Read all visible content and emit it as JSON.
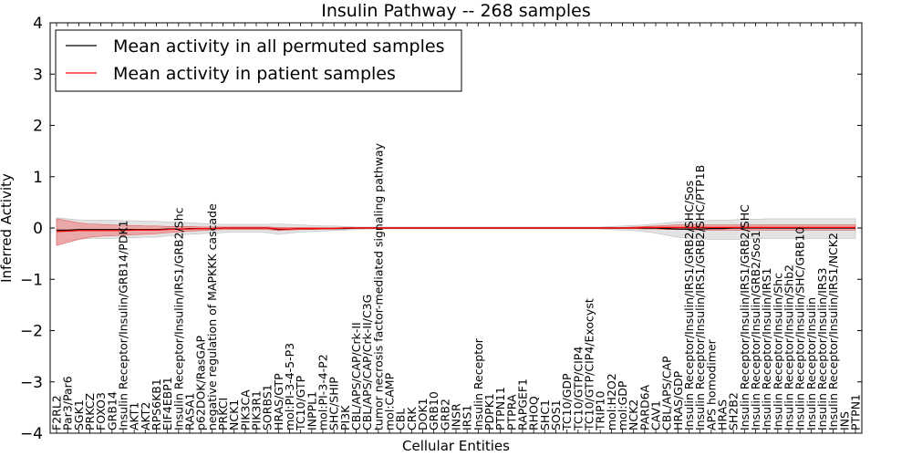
{
  "chart_data": {
    "type": "line",
    "title": "Insulin Pathway -- 268 samples",
    "xlabel": "Cellular Entities",
    "ylabel": "Inferred Activity",
    "ylim": [
      -4,
      4
    ],
    "yticks": [
      -4,
      -3,
      -2,
      -1,
      0,
      1,
      2,
      3,
      4
    ],
    "ytick_labels": [
      "−4",
      "−3",
      "−2",
      "−1",
      "0",
      "1",
      "2",
      "3",
      "4"
    ],
    "legend_position": "top-left",
    "grid": false,
    "categories": [
      "F2RL2",
      "Par3/Par6",
      "SGK1",
      "PRKCZ",
      "FOXO3",
      "GRB14",
      "Insulin Receptor/Insulin/GRB14/PDK1",
      "AKT1",
      "AKT2",
      "RPS6KB1",
      "EIF4EBP1",
      "Insulin Receptor/Insulin/IRS1/GRB2/Shc",
      "RASA1",
      "p62DOK/RasGAP",
      "negative regulation of MAPKKK cascade",
      "PRKCI",
      "NCK1",
      "PIK3CA",
      "PIK3R1",
      "SORBS1",
      "HRAS/GTP",
      "mol:PI-3-4-5-P3",
      "TC10/GTP",
      "INPPL1",
      "mol:PI-3-4-P2",
      "SHC/SHIP",
      "PI3K",
      "CBL/APS/CAP/Crk-II",
      "CBL/APS/CAP/Crk-II/C3G",
      "tumor necrosis factor-mediated signaling pathway",
      "mol:CAMP",
      "CBL",
      "CRK",
      "DOK1",
      "GRB10",
      "GRB2",
      "INSR",
      "IRS1",
      "Insulin Receptor",
      "PDPK1",
      "PTPN11",
      "PTPRA",
      "RAPGEF1",
      "RHOQ",
      "SHC1",
      "SOS1",
      "TC10/GDP",
      "TC10/GTP/CIP4",
      "TC10/GTP/CIP4/Exocyst",
      "TRIP10",
      "mol:H2O2",
      "mol:GDP",
      "NCK2",
      "PARD6A",
      "CAV1",
      "CBL/APS/CAP",
      "HRAS/GDP",
      "Insulin Receptor/Insulin/IRS1/GRB2/SHC/Sos",
      "Insulin Receptor/Insulin/IRS1/GRB2/SHC/PTP1B",
      "APS homodimer",
      "HRAS",
      "SH2B2",
      "Insulin Receptor/Insulin/IRS1/GRB2/SHC",
      "Insulin Receptor/Insulin/GRB2/Sos1",
      "Insulin Receptor/Insulin/IRS1",
      "Insulin Receptor/Insulin/Shc",
      "Insulin Receptor/Insulin/Shb2",
      "Insulin Receptor/Insulin/SHC/GRB10",
      "Insulin Receptor/Insulin",
      "Insulin Receptor/Insulin/IRS3",
      "Insulin Receptor/Insulin/IRS1/NCK2",
      "INS",
      "PTPN1"
    ],
    "series": [
      {
        "name": "Mean activity in all permuted samples",
        "color": "#000000",
        "values": [
          -0.04,
          -0.04,
          -0.03,
          -0.03,
          -0.03,
          -0.03,
          -0.03,
          -0.03,
          -0.03,
          -0.03,
          -0.02,
          -0.02,
          -0.01,
          -0.01,
          -0.01,
          0.0,
          0.0,
          0.0,
          0.0,
          0.0,
          -0.03,
          -0.02,
          -0.01,
          -0.01,
          -0.01,
          -0.01,
          -0.01,
          0.0,
          0.0,
          0.0,
          0.0,
          0.0,
          0.0,
          0.0,
          0.0,
          0.0,
          0.0,
          0.0,
          0.0,
          0.0,
          0.0,
          0.0,
          0.0,
          0.0,
          0.0,
          0.0,
          0.0,
          0.0,
          0.0,
          0.0,
          0.0,
          0.0,
          0.0,
          0.0,
          0.0,
          -0.01,
          -0.02,
          -0.02,
          -0.02,
          -0.01,
          -0.01,
          0.0,
          0.0,
          0.0,
          0.0,
          0.0,
          0.0,
          0.0,
          0.0,
          0.0,
          0.0,
          0.0,
          0.0
        ],
        "band_low": [
          -0.3,
          -0.25,
          -0.22,
          -0.2,
          -0.2,
          -0.2,
          -0.19,
          -0.19,
          -0.18,
          -0.18,
          -0.15,
          -0.14,
          -0.12,
          -0.11,
          -0.1,
          -0.09,
          -0.08,
          -0.08,
          -0.08,
          -0.09,
          -0.12,
          -0.1,
          -0.08,
          -0.07,
          -0.06,
          -0.05,
          -0.04,
          -0.03,
          -0.02,
          -0.02,
          -0.02,
          -0.02,
          -0.02,
          -0.02,
          -0.02,
          -0.02,
          -0.02,
          -0.02,
          -0.02,
          -0.02,
          -0.02,
          -0.02,
          -0.02,
          -0.02,
          -0.02,
          -0.02,
          -0.02,
          -0.02,
          -0.02,
          -0.02,
          -0.03,
          -0.04,
          -0.05,
          -0.07,
          -0.1,
          -0.14,
          -0.18,
          -0.2,
          -0.21,
          -0.22,
          -0.22,
          -0.22,
          -0.21,
          -0.21,
          -0.2,
          -0.2,
          -0.2,
          -0.2,
          -0.2,
          -0.2,
          -0.2,
          -0.2,
          -0.2
        ],
        "band_high": [
          0.2,
          0.18,
          0.16,
          0.15,
          0.15,
          0.15,
          0.14,
          0.14,
          0.13,
          0.13,
          0.12,
          0.11,
          0.1,
          0.09,
          0.08,
          0.07,
          0.07,
          0.07,
          0.07,
          0.07,
          0.08,
          0.07,
          0.06,
          0.05,
          0.04,
          0.04,
          0.03,
          0.02,
          0.02,
          0.02,
          0.02,
          0.02,
          0.02,
          0.02,
          0.02,
          0.02,
          0.02,
          0.02,
          0.02,
          0.02,
          0.02,
          0.02,
          0.02,
          0.02,
          0.02,
          0.02,
          0.02,
          0.02,
          0.02,
          0.02,
          0.03,
          0.04,
          0.05,
          0.06,
          0.08,
          0.1,
          0.12,
          0.13,
          0.14,
          0.15,
          0.15,
          0.16,
          0.17,
          0.17,
          0.18,
          0.18,
          0.18,
          0.18,
          0.18,
          0.18,
          0.18,
          0.18,
          0.18
        ]
      },
      {
        "name": "Mean activity in patient samples",
        "color": "#ff0000",
        "values": [
          -0.07,
          -0.06,
          -0.05,
          -0.05,
          -0.05,
          -0.05,
          -0.05,
          -0.04,
          -0.04,
          -0.04,
          -0.03,
          -0.02,
          -0.02,
          -0.01,
          -0.01,
          0.0,
          0.0,
          0.0,
          0.0,
          0.0,
          -0.02,
          -0.02,
          -0.01,
          -0.01,
          -0.01,
          -0.01,
          0.0,
          0.0,
          0.0,
          0.0,
          0.0,
          0.0,
          0.0,
          0.0,
          0.0,
          0.0,
          0.0,
          0.0,
          0.0,
          0.0,
          0.0,
          0.0,
          0.0,
          0.0,
          0.0,
          0.0,
          0.0,
          0.0,
          0.0,
          0.0,
          0.0,
          0.0,
          0.0,
          0.01,
          0.01,
          0.01,
          0.01,
          0.01,
          0.01,
          0.01,
          0.01,
          0.01,
          0.01,
          0.01,
          0.01,
          0.01,
          0.01,
          0.01,
          0.01,
          0.01,
          0.01,
          0.01,
          0.01
        ],
        "band_low": [
          -0.34,
          -0.28,
          -0.22,
          -0.18,
          -0.16,
          -0.15,
          -0.14,
          -0.13,
          -0.12,
          -0.11,
          -0.09,
          -0.08,
          -0.06,
          -0.05,
          -0.04,
          -0.03,
          -0.03,
          -0.03,
          -0.03,
          -0.03,
          -0.05,
          -0.04,
          -0.03,
          -0.03,
          -0.02,
          -0.02,
          -0.01,
          -0.01,
          -0.01,
          -0.01,
          -0.01,
          -0.01,
          -0.01,
          -0.01,
          -0.01,
          -0.01,
          -0.01,
          -0.01,
          -0.01,
          -0.01,
          -0.01,
          -0.01,
          -0.01,
          -0.01,
          -0.01,
          -0.01,
          -0.01,
          -0.01,
          -0.01,
          -0.01,
          -0.01,
          -0.01,
          -0.01,
          -0.02,
          -0.02,
          -0.03,
          -0.03,
          -0.03,
          -0.04,
          -0.04,
          -0.04,
          -0.04,
          -0.04,
          -0.04,
          -0.04,
          -0.04,
          -0.04,
          -0.04,
          -0.04,
          -0.04,
          -0.04,
          -0.04,
          -0.04
        ],
        "band_high": [
          0.18,
          0.14,
          0.1,
          0.08,
          0.07,
          0.06,
          0.05,
          0.05,
          0.04,
          0.04,
          0.03,
          0.03,
          0.03,
          0.02,
          0.02,
          0.02,
          0.02,
          0.02,
          0.02,
          0.02,
          0.01,
          0.01,
          0.01,
          0.01,
          0.01,
          0.01,
          0.01,
          0.01,
          0.01,
          0.01,
          0.01,
          0.01,
          0.01,
          0.01,
          0.01,
          0.01,
          0.01,
          0.01,
          0.01,
          0.01,
          0.01,
          0.01,
          0.01,
          0.01,
          0.01,
          0.01,
          0.01,
          0.01,
          0.01,
          0.01,
          0.01,
          0.01,
          0.02,
          0.03,
          0.04,
          0.05,
          0.06,
          0.06,
          0.06,
          0.06,
          0.06,
          0.06,
          0.06,
          0.06,
          0.06,
          0.06,
          0.06,
          0.06,
          0.06,
          0.06,
          0.06,
          0.06,
          0.06
        ]
      }
    ]
  }
}
